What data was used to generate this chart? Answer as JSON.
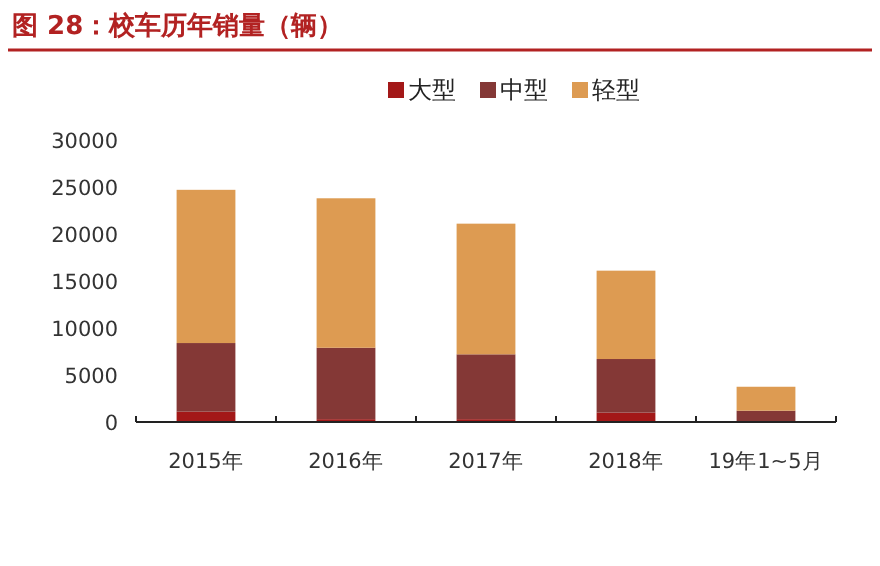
{
  "chart_data": {
    "type": "bar",
    "title": "图 28：校车历年销量（辆）",
    "stacked": true,
    "categories": [
      "2015年",
      "2016年",
      "2017年",
      "2018年",
      "19年1~5月"
    ],
    "series": [
      {
        "name": "大型",
        "color": "#a31818",
        "values": [
          1100,
          300,
          300,
          1000,
          0
        ]
      },
      {
        "name": "中型",
        "color": "#843836",
        "values": [
          7300,
          7600,
          6900,
          5700,
          1200
        ]
      },
      {
        "name": "轻型",
        "color": "#dd9b52",
        "values": [
          16300,
          15900,
          13900,
          9400,
          2550
        ]
      }
    ],
    "ylim": [
      0,
      30000
    ],
    "yticks": [
      0,
      5000,
      10000,
      15000,
      20000,
      25000,
      30000
    ],
    "grid": false,
    "legend": "top"
  }
}
